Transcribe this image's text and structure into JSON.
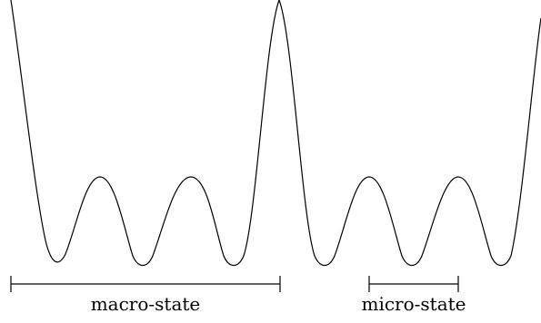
{
  "diagram": {
    "labels": {
      "macro": "macro-state",
      "micro": "micro-state"
    },
    "curve": {
      "description_type": "energy landscape curve",
      "stroke": "#000000"
    }
  }
}
